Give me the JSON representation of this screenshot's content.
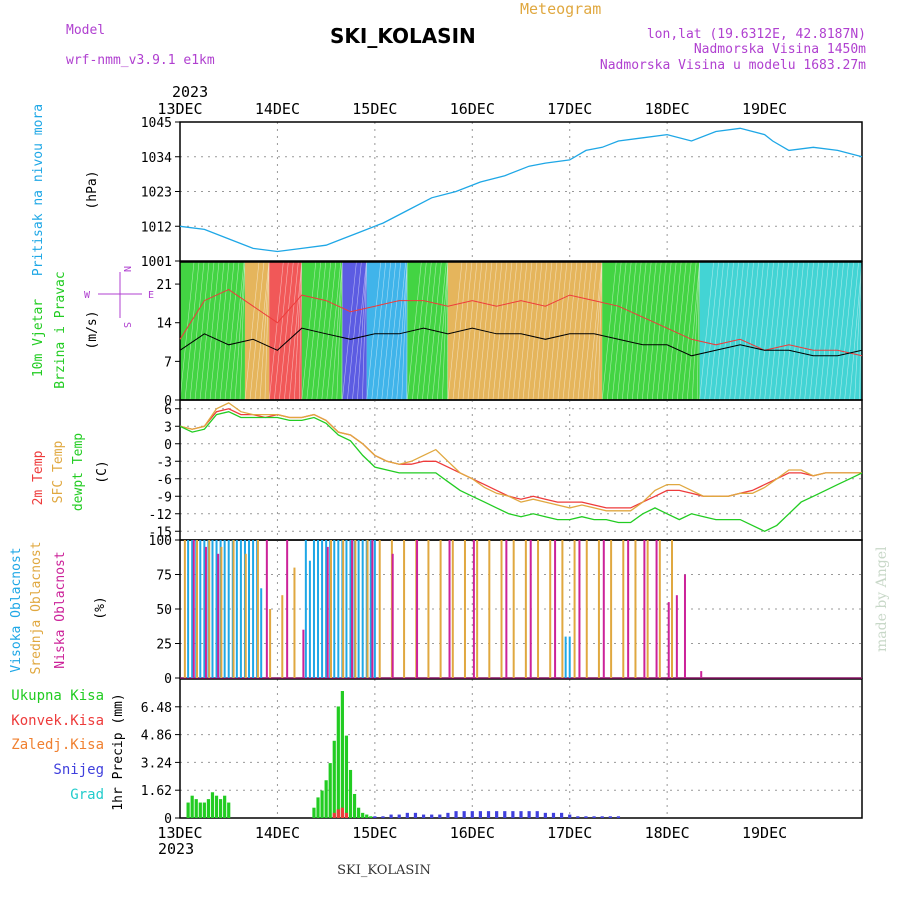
{
  "header": {
    "model_label": "Model",
    "model_name": "wrf-nmm_v3.9.1  e1km",
    "title": "SKI_KOLASIN",
    "meteogram_label": "Meteogram",
    "lonlat": "lon,lat (19.6312E, 42.8187N)",
    "elevation": "Nadmorska Visina 1450m",
    "model_elevation": "Nadmorska Visina u modelu 1683.27m",
    "year_top": "2023",
    "year_bottom": "2023",
    "footer": "SKI_KOLASIN",
    "watermark": "made by Angel"
  },
  "colors": {
    "pressure": "#1ea7e6",
    "wind_speed_black": "#000000",
    "temp2m": "#ee3b3b",
    "sfc_temp": "#e0a840",
    "dewpt": "#22cc22",
    "cloud_high": "#1ea7e6",
    "cloud_mid": "#e0a840",
    "cloud_low": "#cc2299",
    "precip_total": "#22cc22",
    "precip_conv": "#ee3b3b",
    "precip_frozen": "#f08030",
    "precip_snow": "#4040dd",
    "precip_grad": "#22cccc",
    "label_purple": "#b040d0",
    "label_orange": "#e0a840"
  },
  "axis": {
    "days": [
      "13DEC",
      "14DEC",
      "15DEC",
      "16DEC",
      "17DEC",
      "18DEC",
      "19DEC"
    ]
  },
  "chart_data": [
    {
      "type": "line",
      "panel": "pressure",
      "ylabel": "Pritisak na nivou mora",
      "unit": "(hPa)",
      "yticks": [
        "1045",
        "1034",
        "1023",
        "1012",
        "1001"
      ],
      "ylim": [
        1001,
        1045
      ],
      "x_hours": [
        0,
        6,
        12,
        18,
        24,
        30,
        36,
        40,
        44,
        50,
        56,
        62,
        68,
        74,
        80,
        86,
        90,
        96,
        100,
        104,
        108,
        114,
        120,
        126,
        132,
        138,
        144,
        146,
        150,
        156,
        162,
        168
      ],
      "values": [
        1012,
        1011,
        1008,
        1005,
        1004,
        1005,
        1006,
        1008,
        1010,
        1013,
        1017,
        1021,
        1023,
        1026,
        1028,
        1031,
        1032,
        1033,
        1036,
        1037,
        1039,
        1040,
        1041,
        1039,
        1042,
        1043,
        1041,
        1039,
        1036,
        1037,
        1036,
        1034
      ],
      "grid": true
    },
    {
      "type": "line",
      "panel": "wind",
      "ylabel": "10m Vjetar Brzina i Pravac",
      "unit": "(m/s)",
      "yticks": [
        "21",
        "14",
        "7",
        "0"
      ],
      "ylim": [
        0,
        25
      ],
      "compass": [
        "N",
        "E",
        "W",
        "S"
      ],
      "series": [
        {
          "name": "black",
          "x_hours": [
            0,
            6,
            12,
            18,
            24,
            30,
            36,
            42,
            48,
            54,
            60,
            66,
            72,
            78,
            84,
            90,
            96,
            102,
            108,
            114,
            120,
            126,
            132,
            138,
            144,
            150,
            156,
            162,
            168
          ],
          "values": [
            9,
            12,
            10,
            11,
            9,
            13,
            12,
            11,
            12,
            12,
            13,
            12,
            13,
            12,
            12,
            11,
            12,
            12,
            11,
            10,
            10,
            8,
            9,
            10,
            9,
            9,
            8,
            8,
            9
          ]
        },
        {
          "name": "red",
          "x_hours": [
            0,
            6,
            12,
            18,
            24,
            30,
            36,
            42,
            48,
            54,
            60,
            66,
            72,
            78,
            84,
            90,
            96,
            102,
            108,
            114,
            120,
            126,
            132,
            138,
            144,
            150,
            156,
            162,
            168
          ],
          "values": [
            11,
            18,
            20,
            17,
            14,
            19,
            18,
            16,
            17,
            18,
            18,
            17,
            18,
            17,
            18,
            17,
            19,
            18,
            17,
            15,
            13,
            11,
            10,
            11,
            9,
            10,
            9,
            9,
            8
          ]
        }
      ],
      "direction_bands": [
        {
          "from": 0,
          "to": 16,
          "color": "#22cc22"
        },
        {
          "from": 16,
          "to": 22,
          "color": "#e0a840"
        },
        {
          "from": 22,
          "to": 30,
          "color": "#ee3b3b"
        },
        {
          "from": 30,
          "to": 40,
          "color": "#22cc22"
        },
        {
          "from": 40,
          "to": 46,
          "color": "#4040dd"
        },
        {
          "from": 46,
          "to": 56,
          "color": "#1ea7e6"
        },
        {
          "from": 56,
          "to": 66,
          "color": "#22cc22"
        },
        {
          "from": 66,
          "to": 104,
          "color": "#e0a840"
        },
        {
          "from": 104,
          "to": 128,
          "color": "#22cc22"
        },
        {
          "from": 128,
          "to": 168,
          "color": "#22cccc"
        }
      ]
    },
    {
      "type": "line",
      "panel": "temperature",
      "ylabel": [
        "2m Temp",
        "SFC Temp",
        "dewpt Temp"
      ],
      "unit": "(C)",
      "yticks": [
        "6",
        "3",
        "0",
        "-3",
        "-6",
        "-9",
        "-12",
        "-15"
      ],
      "ylim": [
        -16.5,
        7.5
      ],
      "x_hours": [
        0,
        3,
        6,
        9,
        12,
        15,
        18,
        21,
        24,
        27,
        30,
        33,
        36,
        39,
        42,
        45,
        48,
        51,
        54,
        57,
        60,
        63,
        66,
        69,
        72,
        75,
        78,
        81,
        84,
        87,
        90,
        93,
        96,
        99,
        102,
        105,
        108,
        111,
        114,
        117,
        120,
        123,
        126,
        129,
        132,
        135,
        138,
        141,
        144,
        147,
        150,
        153,
        156,
        159,
        162,
        165,
        168
      ],
      "series": [
        {
          "name": "2m Temp",
          "values": [
            3,
            2.5,
            3,
            5.5,
            6,
            5,
            5,
            4.5,
            5,
            4.5,
            4.5,
            5,
            4,
            2,
            1.5,
            0,
            -2,
            -3,
            -3.5,
            -3.5,
            -3,
            -3,
            -4,
            -5,
            -6,
            -7,
            -8,
            -9,
            -9.5,
            -9,
            -9.5,
            -10,
            -10,
            -10,
            -10.5,
            -11,
            -11,
            -11,
            -10,
            -9,
            -8,
            -8,
            -8.5,
            -9,
            -9,
            -9,
            -8.5,
            -8,
            -7,
            -6,
            -5,
            -5,
            -5.5,
            -5,
            -5,
            -5,
            -5
          ]
        },
        {
          "name": "SFC Temp",
          "values": [
            3,
            2.5,
            3,
            6,
            7,
            5.5,
            5,
            5,
            5,
            4.5,
            4.5,
            5,
            4,
            2,
            1.5,
            0,
            -2,
            -3,
            -3.5,
            -3,
            -2,
            -1,
            -3,
            -5,
            -6,
            -7.5,
            -8.5,
            -9,
            -10,
            -9.5,
            -10,
            -10.5,
            -11,
            -10.5,
            -11,
            -11.5,
            -11.5,
            -11.5,
            -10,
            -8,
            -7,
            -7,
            -8,
            -9,
            -9,
            -9,
            -8.5,
            -8.5,
            -7.5,
            -6,
            -4.5,
            -4.5,
            -5.5,
            -5,
            -5,
            -5,
            -5
          ]
        },
        {
          "name": "dewpt Temp",
          "values": [
            3,
            2,
            2.5,
            5,
            5.5,
            4.5,
            4.5,
            4.5,
            4.5,
            4,
            4,
            4.5,
            3.5,
            1.5,
            0.5,
            -2,
            -4,
            -4.5,
            -5,
            -5,
            -5,
            -5,
            -6.5,
            -8,
            -9,
            -10,
            -11,
            -12,
            -12.5,
            -12,
            -12.5,
            -13,
            -13,
            -12.5,
            -13,
            -13,
            -13.5,
            -13.5,
            -12,
            -11,
            -12,
            -13,
            -12,
            -12.5,
            -13,
            -13,
            -13,
            -14,
            -15,
            -14,
            -12,
            -10,
            -9,
            -8,
            -7,
            -6,
            -5
          ]
        }
      ]
    },
    {
      "type": "bar",
      "panel": "cloud",
      "ylabel": [
        "Visoka Oblacnost",
        "Srednja Oblacnost",
        "Niska Oblacnost"
      ],
      "unit": "(%)",
      "yticks": [
        "100",
        "75",
        "50",
        "25",
        "0"
      ],
      "ylim": [
        0,
        100
      ],
      "series": [
        {
          "name": "Visoka Oblacnost",
          "x_hours": [
            2,
            3,
            4,
            5,
            6,
            7,
            8,
            9,
            10,
            11,
            12,
            13,
            14,
            15,
            16,
            17,
            18,
            19,
            20,
            31,
            32,
            33,
            34,
            35,
            36,
            37,
            38,
            39,
            40,
            41,
            42,
            43,
            44,
            45,
            46,
            47,
            48,
            95,
            96
          ],
          "values": [
            100,
            100,
            100,
            100,
            100,
            100,
            100,
            100,
            100,
            100,
            100,
            100,
            100,
            100,
            100,
            100,
            100,
            100,
            65,
            100,
            85,
            100,
            100,
            100,
            100,
            100,
            100,
            100,
            100,
            100,
            100,
            100,
            100,
            100,
            100,
            100,
            100,
            30,
            30
          ]
        },
        {
          "name": "Srednja Oblacnost",
          "x_hours": [
            1,
            4,
            7,
            10,
            13,
            16,
            19,
            22,
            25,
            28,
            37,
            40,
            43,
            46,
            49,
            52,
            55,
            58,
            61,
            64,
            67,
            70,
            73,
            76,
            79,
            82,
            85,
            88,
            91,
            94,
            97,
            100,
            103,
            106,
            109,
            112,
            115,
            118,
            121
          ],
          "values": [
            100,
            100,
            100,
            95,
            100,
            90,
            100,
            50,
            60,
            80,
            100,
            100,
            100,
            100,
            100,
            100,
            100,
            100,
            100,
            100,
            100,
            100,
            100,
            100,
            100,
            100,
            100,
            100,
            100,
            100,
            100,
            100,
            100,
            100,
            100,
            100,
            100,
            100,
            100
          ]
        },
        {
          "name": "Niska Oblacnost",
          "x_hours": [
            3,
            6,
            9,
            21,
            26,
            30,
            36,
            42,
            47,
            52,
            58,
            66,
            72,
            80,
            86,
            92,
            98,
            104,
            110,
            114,
            117,
            120,
            122,
            124,
            128
          ],
          "values": [
            100,
            95,
            90,
            100,
            100,
            35,
            95,
            100,
            100,
            90,
            100,
            100,
            100,
            100,
            100,
            100,
            100,
            100,
            100,
            100,
            100,
            55,
            60,
            75,
            5
          ]
        }
      ]
    },
    {
      "type": "bar",
      "panel": "precip",
      "ylabel": "1hr Precip",
      "unit": "(mm)",
      "yticks": [
        "6.48",
        "4.86",
        "3.24",
        "1.62",
        "0"
      ],
      "ylim": [
        0,
        8.1
      ],
      "legend": [
        "Ukupna Kisa",
        "Konvek.Kisa",
        "Zaledj.Kisa",
        "Snijeg",
        "Grad"
      ],
      "series": [
        {
          "name": "Ukupna Kisa",
          "x_hours": [
            2,
            3,
            4,
            5,
            6,
            7,
            8,
            9,
            10,
            11,
            12,
            33,
            34,
            35,
            36,
            37,
            38,
            39,
            40,
            41,
            42,
            43,
            44,
            45,
            46,
            47
          ],
          "values": [
            0.9,
            1.3,
            1.1,
            0.9,
            0.9,
            1.1,
            1.5,
            1.3,
            1.1,
            1.3,
            0.9,
            0.6,
            1.2,
            1.6,
            2.2,
            3.2,
            4.5,
            6.5,
            7.4,
            4.8,
            2.8,
            1.4,
            0.6,
            0.3,
            0.2,
            0.1
          ]
        },
        {
          "name": "Konvek.Kisa",
          "x_hours": [
            38,
            39,
            40,
            41
          ],
          "values": [
            0.3,
            0.5,
            0.6,
            0.3
          ]
        },
        {
          "name": "Snijeg",
          "x_hours": [
            48,
            50,
            52,
            54,
            56,
            58,
            60,
            62,
            64,
            66,
            68,
            70,
            72,
            74,
            76,
            78,
            80,
            82,
            84,
            86,
            88,
            90,
            92,
            94,
            96,
            98,
            100,
            102,
            104,
            106,
            108
          ],
          "values": [
            0.1,
            0.1,
            0.2,
            0.2,
            0.3,
            0.3,
            0.2,
            0.2,
            0.2,
            0.3,
            0.4,
            0.4,
            0.4,
            0.4,
            0.4,
            0.4,
            0.4,
            0.4,
            0.4,
            0.4,
            0.4,
            0.3,
            0.3,
            0.3,
            0.2,
            0.1,
            0.1,
            0.1,
            0.1,
            0.1,
            0.1
          ]
        }
      ]
    }
  ]
}
